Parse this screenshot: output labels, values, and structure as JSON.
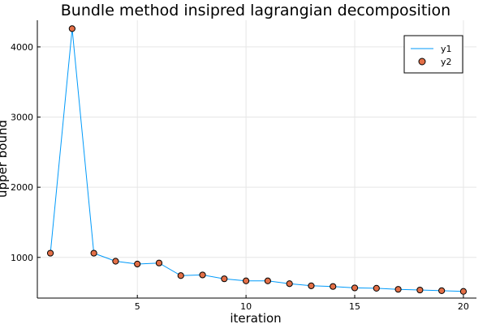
{
  "chart_data": {
    "type": "line",
    "title": "Bundle method insipred lagrangian decomposition",
    "xlabel": "iteration",
    "ylabel": "upper bound",
    "xlim": [
      0.4,
      20.6
    ],
    "ylim": [
      420,
      4380
    ],
    "xticks": [
      5,
      10,
      15,
      20
    ],
    "yticks": [
      1000,
      2000,
      3000,
      4000
    ],
    "grid": true,
    "legend_position": "top-right",
    "x": [
      1,
      2,
      3,
      4,
      5,
      6,
      7,
      8,
      9,
      10,
      11,
      12,
      13,
      14,
      15,
      16,
      17,
      18,
      19,
      20
    ],
    "series": [
      {
        "name": "y1",
        "kind": "line",
        "color": "#009AFA",
        "values": [
          1060,
          4260,
          1060,
          945,
          905,
          920,
          740,
          750,
          695,
          665,
          665,
          625,
          595,
          585,
          565,
          560,
          545,
          535,
          525,
          515
        ]
      },
      {
        "name": "y2",
        "kind": "scatter",
        "color": "#E36F47",
        "values": [
          1060,
          4260,
          1060,
          945,
          905,
          920,
          740,
          750,
          695,
          665,
          665,
          625,
          595,
          585,
          565,
          560,
          545,
          535,
          525,
          515
        ]
      }
    ]
  }
}
